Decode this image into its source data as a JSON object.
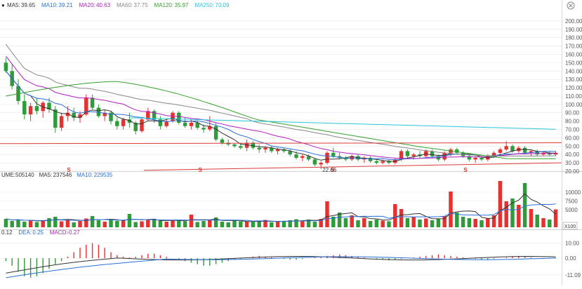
{
  "main_legend": [
    {
      "label": "MA5:",
      "value": "39.65",
      "color": "#333333"
    },
    {
      "label": "MA10:",
      "value": "39.21",
      "color": "#2a6fd8"
    },
    {
      "label": "MA20:",
      "value": "40.63",
      "color": "#b020c0"
    },
    {
      "label": "MA60:",
      "value": "37.75",
      "color": "#888888"
    },
    {
      "label": "MA120:",
      "value": "35.97",
      "color": "#33a02c"
    },
    {
      "label": "MA250:",
      "value": "70.09",
      "color": "#29c6d9"
    }
  ],
  "volume_legend": [
    {
      "label": "UME:",
      "value": "505140",
      "color": "#333333"
    },
    {
      "label": "MA5:",
      "value": "237546",
      "color": "#333333"
    },
    {
      "label": "MA10:",
      "value": "229535",
      "color": "#2a6fd8"
    }
  ],
  "macd_legend": [
    {
      "label": "",
      "value": "0.12",
      "color": "#333333"
    },
    {
      "label": "DEA:",
      "value": "0.25",
      "color": "#2a6fd8"
    },
    {
      "label": "MACD:",
      "value": "-0.27",
      "color": "#b020c0"
    }
  ],
  "annotations": {
    "low_price": "22.66",
    "marker": "S",
    "scale_badge": "X100"
  },
  "colors": {
    "up": "#e8302f",
    "down": "#2f9b3a",
    "grid": "#e8e8e8",
    "axis_text": "#555555"
  },
  "chart_data": [
    {
      "type": "candlestick",
      "title": "",
      "ylim": [
        20,
        210
      ],
      "y_ticks": [
        20,
        30,
        40,
        50,
        60,
        70,
        80,
        90,
        100,
        110,
        120,
        130,
        140,
        150,
        160,
        170,
        180,
        190,
        200
      ],
      "y_tick_labels": [
        "20.00",
        "30.00",
        "40.00",
        "50.00",
        "60.00",
        "70.00",
        "80.00",
        "90.00",
        "100.00",
        "110.00",
        "120.00",
        "130.00",
        "140.00",
        "150.00",
        "160.00",
        "170.00",
        "180.00",
        "190.00",
        "200.00"
      ],
      "bars": [
        [
          150,
          156,
          138,
          140
        ],
        [
          140,
          148,
          118,
          122
        ],
        [
          122,
          130,
          100,
          104
        ],
        [
          104,
          112,
          82,
          88
        ],
        [
          88,
          102,
          80,
          98
        ],
        [
          98,
          108,
          88,
          92
        ],
        [
          92,
          104,
          84,
          102
        ],
        [
          102,
          108,
          90,
          94
        ],
        [
          94,
          98,
          66,
          72
        ],
        [
          72,
          90,
          68,
          86
        ],
        [
          86,
          98,
          80,
          90
        ],
        [
          90,
          96,
          80,
          84
        ],
        [
          84,
          92,
          78,
          88
        ],
        [
          88,
          112,
          86,
          108
        ],
        [
          108,
          112,
          94,
          96
        ],
        [
          96,
          100,
          84,
          86
        ],
        [
          86,
          94,
          80,
          90
        ],
        [
          90,
          92,
          76,
          80
        ],
        [
          80,
          84,
          70,
          74
        ],
        [
          74,
          84,
          70,
          82
        ],
        [
          82,
          90,
          72,
          78
        ],
        [
          78,
          80,
          64,
          68
        ],
        [
          68,
          84,
          66,
          82
        ],
        [
          82,
          96,
          80,
          92
        ],
        [
          92,
          94,
          78,
          82
        ],
        [
          82,
          86,
          70,
          74
        ],
        [
          74,
          82,
          72,
          80
        ],
        [
          80,
          92,
          78,
          90
        ],
        [
          90,
          92,
          76,
          78
        ],
        [
          78,
          84,
          72,
          74
        ],
        [
          74,
          82,
          70,
          78
        ],
        [
          78,
          80,
          70,
          72
        ],
        [
          72,
          76,
          66,
          70
        ],
        [
          70,
          86,
          68,
          74
        ],
        [
          74,
          78,
          56,
          58
        ],
        [
          58,
          60,
          52,
          54
        ],
        [
          54,
          58,
          50,
          52
        ],
        [
          52,
          54,
          48,
          50
        ],
        [
          50,
          54,
          46,
          48
        ],
        [
          48,
          58,
          44,
          54
        ],
        [
          54,
          56,
          46,
          48
        ],
        [
          48,
          52,
          42,
          46
        ],
        [
          46,
          50,
          42,
          48
        ],
        [
          48,
          50,
          42,
          44
        ],
        [
          44,
          48,
          40,
          46
        ],
        [
          46,
          48,
          42,
          44
        ],
        [
          44,
          46,
          38,
          40
        ],
        [
          40,
          44,
          34,
          36
        ],
        [
          36,
          40,
          32,
          38
        ],
        [
          38,
          40,
          32,
          34
        ],
        [
          34,
          36,
          26,
          28
        ],
        [
          28,
          32,
          22.66,
          30
        ],
        [
          30,
          44,
          28,
          42
        ],
        [
          42,
          48,
          36,
          38
        ],
        [
          38,
          42,
          34,
          36
        ],
        [
          36,
          38,
          32,
          34
        ],
        [
          34,
          40,
          32,
          38
        ],
        [
          38,
          40,
          32,
          34
        ],
        [
          34,
          38,
          30,
          36
        ],
        [
          36,
          38,
          30,
          32
        ],
        [
          32,
          34,
          28,
          30
        ],
        [
          30,
          34,
          28,
          32
        ],
        [
          32,
          34,
          28,
          30
        ],
        [
          30,
          36,
          28,
          34
        ],
        [
          34,
          46,
          32,
          44
        ],
        [
          44,
          46,
          36,
          38
        ],
        [
          38,
          42,
          34,
          40
        ],
        [
          40,
          44,
          36,
          38
        ],
        [
          38,
          46,
          36,
          44
        ],
        [
          44,
          46,
          36,
          38
        ],
        [
          38,
          40,
          32,
          34
        ],
        [
          34,
          44,
          32,
          42
        ],
        [
          42,
          48,
          38,
          46
        ],
        [
          46,
          48,
          40,
          42
        ],
        [
          42,
          44,
          36,
          38
        ],
        [
          38,
          40,
          32,
          34
        ],
        [
          34,
          38,
          30,
          36
        ],
        [
          36,
          38,
          32,
          34
        ],
        [
          34,
          40,
          32,
          38
        ],
        [
          38,
          44,
          36,
          42
        ],
        [
          42,
          48,
          40,
          46
        ],
        [
          46,
          56,
          44,
          50
        ],
        [
          50,
          52,
          42,
          44
        ],
        [
          44,
          50,
          42,
          48
        ],
        [
          48,
          50,
          40,
          42
        ],
        [
          42,
          46,
          38,
          44
        ],
        [
          44,
          46,
          38,
          40
        ],
        [
          40,
          44,
          38,
          42
        ],
        [
          42,
          44,
          38,
          40
        ],
        [
          40,
          44,
          38,
          42
        ]
      ]
    },
    {
      "type": "bar",
      "title": "Volume",
      "ylim": [
        0,
        14000
      ],
      "y_ticks": [
        5000,
        7500,
        10000
      ],
      "y_tick_labels": [
        "5000",
        "7500",
        "10000"
      ],
      "values": [
        2400,
        1800,
        2200,
        1600,
        2000,
        1500,
        1900,
        2600,
        3000,
        1700,
        2100,
        1400,
        1800,
        2500,
        3200,
        2000,
        1600,
        2200,
        1800,
        2000,
        3800,
        1500,
        1700,
        2100,
        2400,
        1800,
        1600,
        1900,
        2100,
        1700,
        3600,
        1500,
        1800,
        2000,
        2800,
        1600,
        1400,
        1900,
        1700,
        1600,
        1500,
        1800,
        2100,
        1400,
        1600,
        1700,
        2000,
        2300,
        1800,
        2200,
        1600,
        2400,
        7400,
        3000,
        4200,
        2600,
        3400,
        2000,
        2600,
        1800,
        2200,
        1900,
        1700,
        6600,
        5200,
        2600,
        3000,
        2200,
        2500,
        2000,
        2400,
        3200,
        10200,
        4200,
        3000,
        2600,
        2400,
        2000,
        2600,
        3400,
        13200,
        7400,
        8200,
        6400,
        12600,
        5200,
        3600,
        2600,
        2200,
        5100
      ]
    },
    {
      "type": "bar",
      "title": "MACD",
      "ylim": [
        -14,
        15
      ],
      "y_ticks": [
        -11.09,
        0,
        10
      ],
      "y_tick_labels": [
        "-11.09",
        "0.00",
        "10.00"
      ],
      "values": [
        -2,
        -5,
        -9,
        -12,
        -13,
        -12,
        -10,
        -7,
        -4,
        -2,
        1,
        4,
        7,
        9,
        10,
        9,
        7,
        4,
        2,
        1,
        0.5,
        1,
        2,
        3,
        3,
        2,
        1,
        0,
        -1,
        -2,
        -3,
        -4,
        -5,
        -5,
        -4,
        -3,
        -2,
        -1,
        -0.5,
        0.5,
        1,
        1.5,
        1,
        0.5,
        0,
        -0.5,
        -1,
        -1,
        -0.5,
        0,
        0.5,
        1,
        1.5,
        2,
        2.5,
        2,
        1.5,
        1,
        0.5,
        0,
        -0.5,
        -1,
        -1.5,
        -1,
        -0.5,
        0,
        0.5,
        1,
        1.5,
        2,
        2.5,
        2,
        1.5,
        1,
        0.5,
        0,
        -0.5,
        -1,
        -1,
        -0.5,
        0,
        0.5,
        1,
        1.5,
        1,
        0.5,
        0,
        -0.5,
        -0.3,
        -0.27
      ]
    }
  ]
}
